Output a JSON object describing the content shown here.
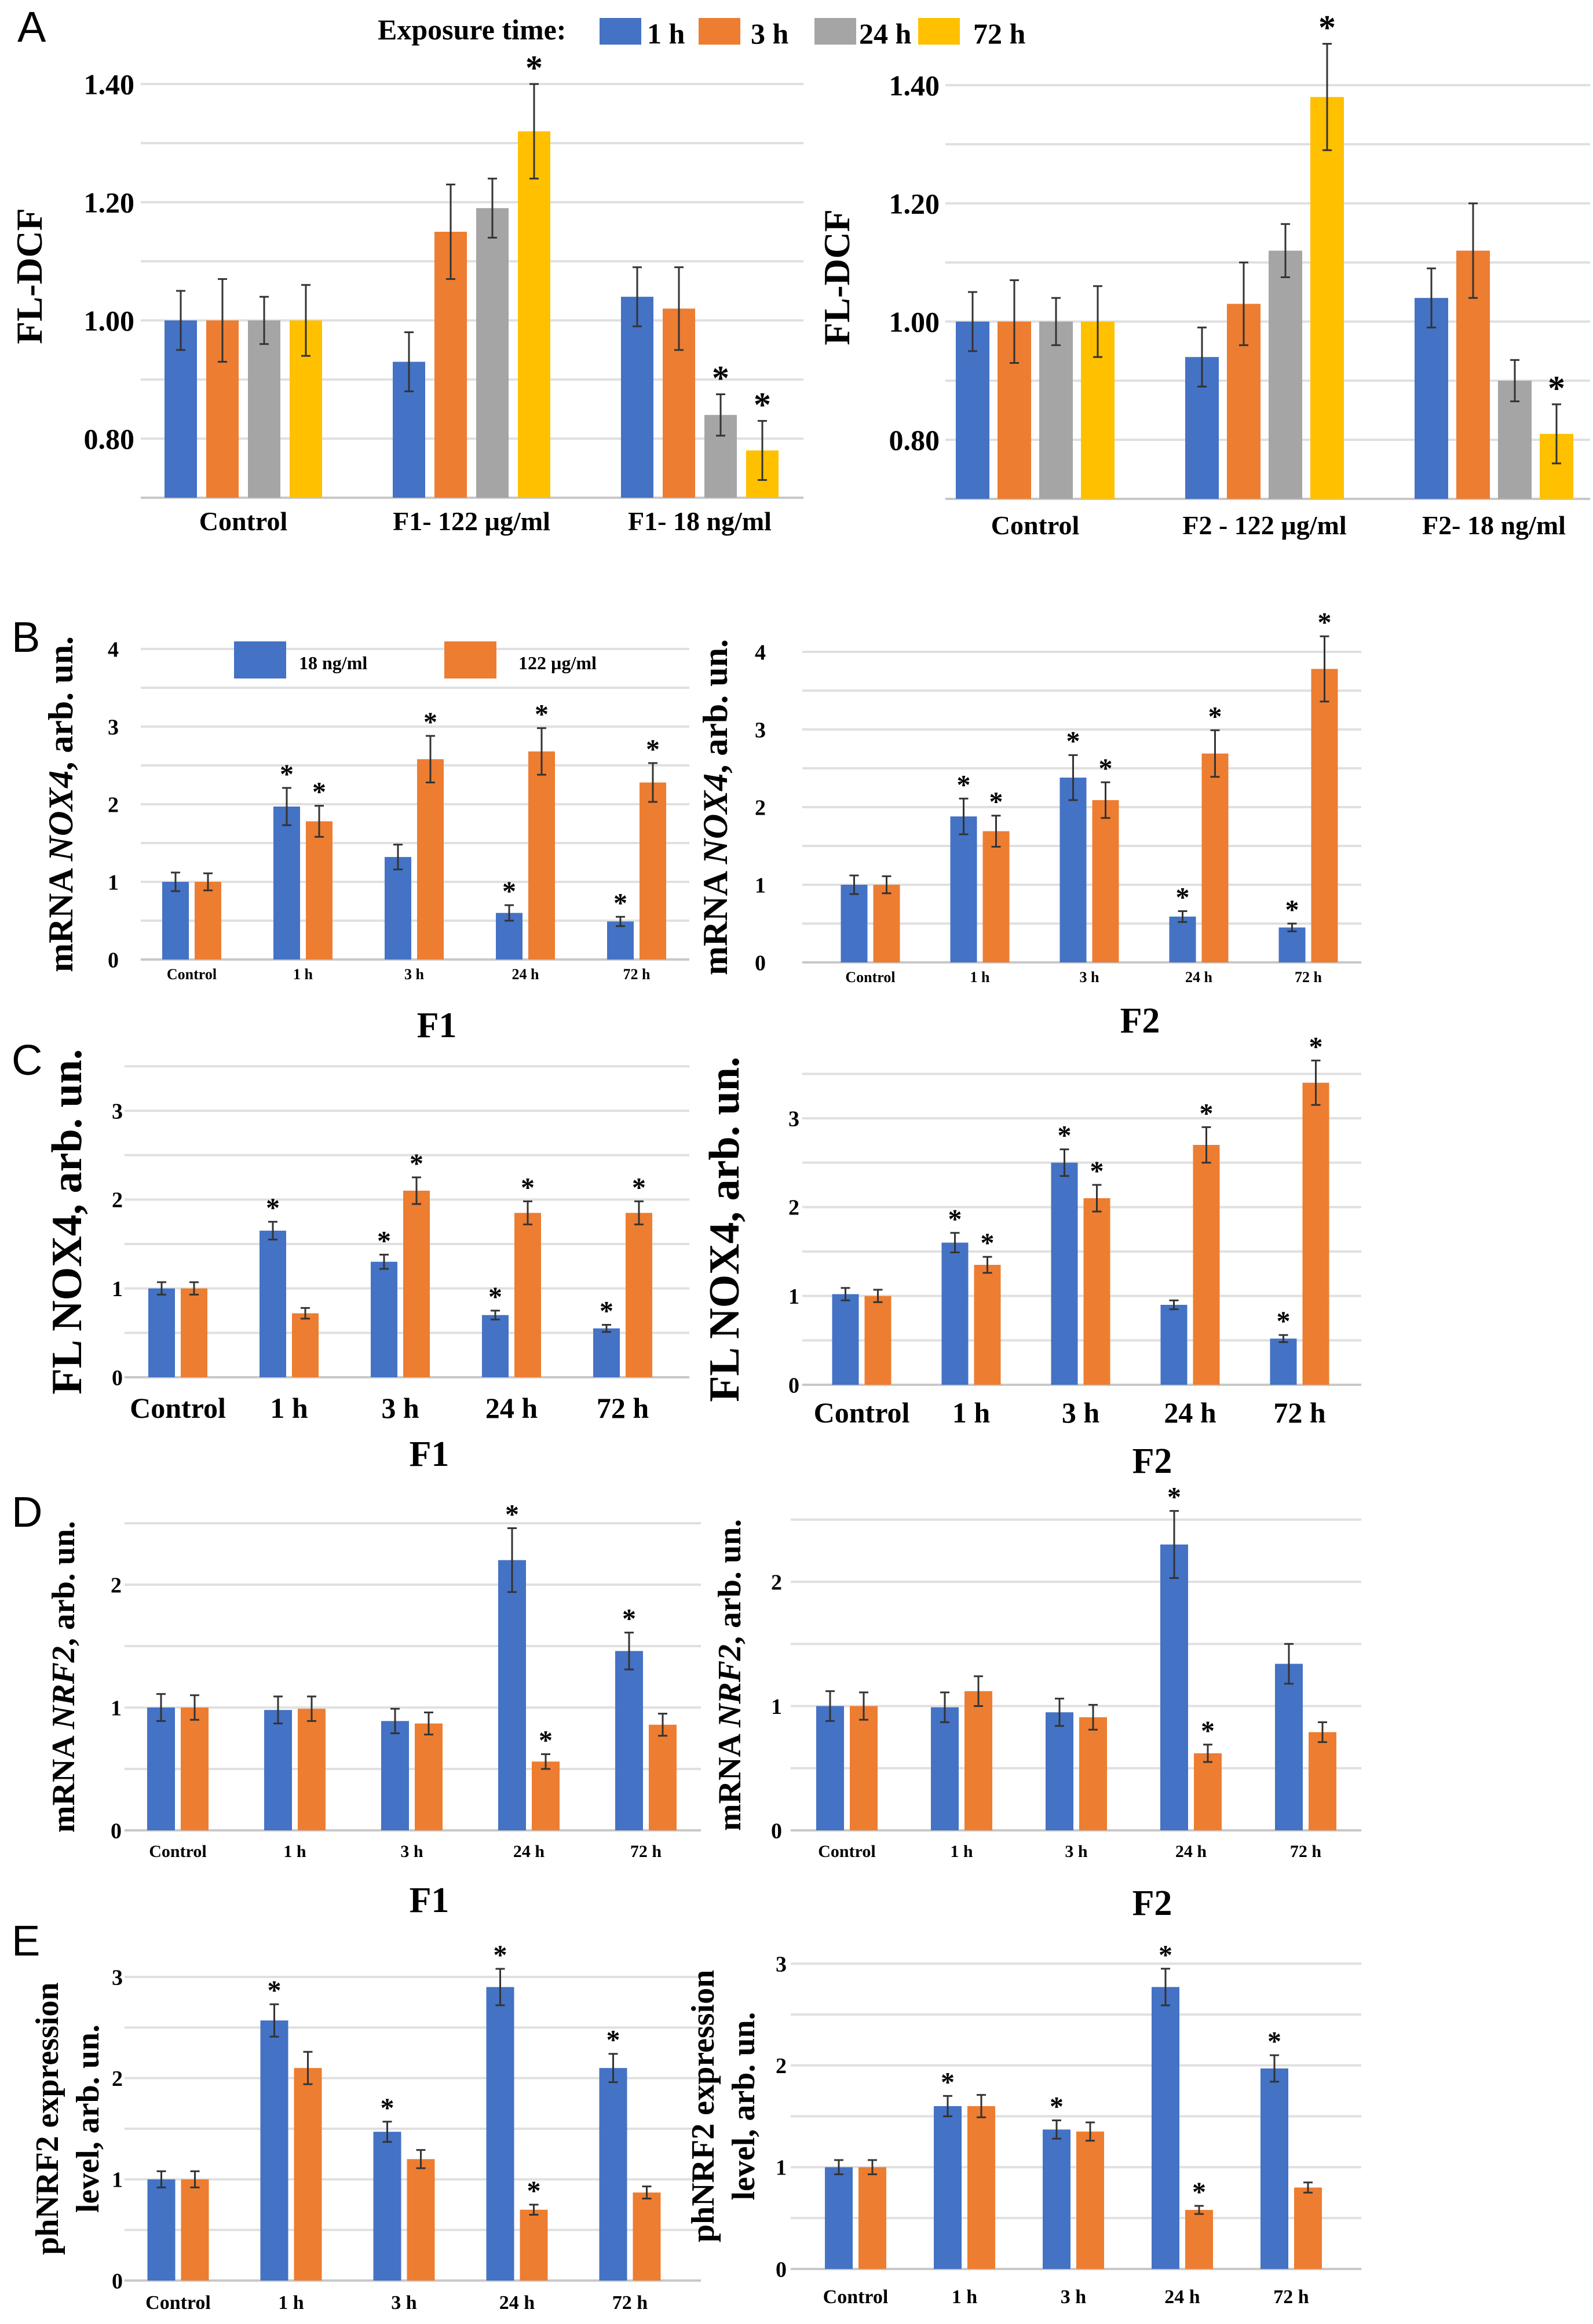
{
  "panel_letters": [
    "A",
    "B",
    "C",
    "D",
    "E"
  ],
  "legend_exposure": {
    "title": "Exposure time:",
    "items": [
      {
        "label": "1 h",
        "color": "#4472C4"
      },
      {
        "label": "3 h",
        "color": "#ED7D31"
      },
      {
        "label": "24 h",
        "color": "#A5A5A5"
      },
      {
        "label": "72 h",
        "color": "#FFC000"
      }
    ]
  },
  "legend_concentration": {
    "items": [
      {
        "label": "18 ng/ml",
        "color": "#4472C4"
      },
      {
        "label": "122 µg/ml",
        "color": "#ED7D31"
      }
    ]
  },
  "chart_data": [
    {
      "panel": "A",
      "type": "bar",
      "grid": true,
      "ylabel": [
        [
          {
            "text": "FL-DCF",
            "italic": false
          }
        ]
      ],
      "ylim": [
        0.7,
        1.45
      ],
      "yticks": [
        0.8,
        1.0,
        1.2,
        1.4
      ],
      "ytick_labels": [
        "0.80",
        "1.00",
        "1.20",
        "1.40"
      ],
      "categories": [
        "Control",
        "F1- 122 µg/ml",
        "F1- 18 ng/ml"
      ],
      "legend": "top",
      "series": [
        {
          "name": "1 h",
          "color": "#4472C4",
          "values": [
            1.0,
            0.93,
            1.04
          ],
          "errors": [
            0.05,
            0.05,
            0.05
          ],
          "significant": [
            false,
            false,
            false
          ]
        },
        {
          "name": "3 h",
          "color": "#ED7D31",
          "values": [
            1.0,
            1.15,
            1.02
          ],
          "errors": [
            0.07,
            0.08,
            0.07
          ],
          "significant": [
            false,
            false,
            false
          ]
        },
        {
          "name": "24 h",
          "color": "#A5A5A5",
          "values": [
            1.0,
            1.19,
            0.84
          ],
          "errors": [
            0.04,
            0.05,
            0.035
          ],
          "significant": [
            false,
            false,
            true
          ]
        },
        {
          "name": "72 h",
          "color": "#FFC000",
          "values": [
            1.0,
            1.32,
            0.78
          ],
          "errors": [
            0.06,
            0.08,
            0.05
          ],
          "significant": [
            false,
            true,
            true
          ]
        }
      ]
    },
    {
      "panel": "A",
      "type": "bar",
      "grid": true,
      "ylabel": [
        [
          {
            "text": "FL-DCF",
            "italic": false
          }
        ]
      ],
      "ylim": [
        0.7,
        1.45
      ],
      "yticks": [
        0.8,
        1.0,
        1.2,
        1.4
      ],
      "ytick_labels": [
        "0.80",
        "1.00",
        "1.20",
        "1.40"
      ],
      "categories": [
        "Control",
        "F2 - 122 µg/ml",
        "F2- 18 ng/ml"
      ],
      "series": [
        {
          "name": "1 h",
          "color": "#4472C4",
          "values": [
            1.0,
            0.94,
            1.04
          ],
          "errors": [
            0.05,
            0.05,
            0.05
          ],
          "significant": [
            false,
            false,
            false
          ]
        },
        {
          "name": "3 h",
          "color": "#ED7D31",
          "values": [
            1.0,
            1.03,
            1.12
          ],
          "errors": [
            0.07,
            0.07,
            0.08
          ],
          "significant": [
            false,
            false,
            false
          ]
        },
        {
          "name": "24 h",
          "color": "#A5A5A5",
          "values": [
            1.0,
            1.12,
            0.9
          ],
          "errors": [
            0.04,
            0.045,
            0.035
          ],
          "significant": [
            false,
            false,
            false
          ]
        },
        {
          "name": "72 h",
          "color": "#FFC000",
          "values": [
            1.0,
            1.38,
            0.81
          ],
          "errors": [
            0.06,
            0.09,
            0.05
          ],
          "significant": [
            false,
            true,
            true
          ]
        }
      ]
    },
    {
      "panel": "B",
      "type": "bar",
      "grid": true,
      "group_label": "F1",
      "ylabel": [
        [
          {
            "text": "mRNA ",
            "italic": false
          },
          {
            "text": "NOX4",
            "italic": true
          },
          {
            "text": ", arb. un.",
            "italic": false
          }
        ]
      ],
      "ylim": [
        0,
        4
      ],
      "yticks": [
        0,
        1,
        2,
        3,
        4
      ],
      "ytick_labels": [
        "0",
        "1",
        "2",
        "3",
        "4"
      ],
      "categories": [
        "Control",
        "1 h",
        "3 h",
        "24 h",
        "72 h"
      ],
      "legend": "top-left",
      "series": [
        {
          "name": "18 ng/ml",
          "color": "#4472C4",
          "values": [
            1.0,
            1.97,
            1.32,
            0.6,
            0.49
          ],
          "errors": [
            0.12,
            0.24,
            0.16,
            0.1,
            0.06
          ],
          "significant": [
            false,
            true,
            false,
            true,
            true
          ]
        },
        {
          "name": "122 µg/ml",
          "color": "#ED7D31",
          "values": [
            1.0,
            1.78,
            2.58,
            2.68,
            2.28
          ],
          "errors": [
            0.11,
            0.2,
            0.3,
            0.3,
            0.25
          ],
          "significant": [
            false,
            true,
            true,
            true,
            true
          ]
        }
      ]
    },
    {
      "panel": "B",
      "type": "bar",
      "grid": true,
      "group_label": "F2",
      "ylabel": [
        [
          {
            "text": "mRNA ",
            "italic": false
          },
          {
            "text": "NOX4",
            "italic": true
          },
          {
            "text": ", arb. un.",
            "italic": false
          }
        ]
      ],
      "ylim": [
        0,
        4
      ],
      "yticks": [
        0,
        1,
        2,
        3,
        4
      ],
      "ytick_labels": [
        "0",
        "1",
        "2",
        "3",
        "4"
      ],
      "categories": [
        "Control",
        "1 h",
        "3 h",
        "24 h",
        "72 h"
      ],
      "series": [
        {
          "name": "18 ng/ml",
          "color": "#4472C4",
          "values": [
            1.0,
            1.88,
            2.38,
            0.59,
            0.45
          ],
          "errors": [
            0.12,
            0.23,
            0.29,
            0.07,
            0.05
          ],
          "significant": [
            false,
            true,
            true,
            true,
            true
          ]
        },
        {
          "name": "122 µg/ml",
          "color": "#ED7D31",
          "values": [
            1.0,
            1.69,
            2.09,
            2.69,
            3.78
          ],
          "errors": [
            0.11,
            0.2,
            0.23,
            0.3,
            0.42
          ],
          "significant": [
            false,
            true,
            true,
            true,
            true
          ]
        }
      ]
    },
    {
      "panel": "C",
      "type": "bar",
      "grid": true,
      "group_label": "F1",
      "ylabel": [
        [
          {
            "text": "FL NOX4, arb. un.",
            "italic": false
          }
        ]
      ],
      "ylim": [
        0,
        3.5
      ],
      "yticks": [
        0,
        1,
        2,
        3
      ],
      "ytick_labels": [
        "0",
        "1",
        "2",
        "3"
      ],
      "categories": [
        "Control",
        "1 h",
        "3 h",
        "24 h",
        "72 h"
      ],
      "series": [
        {
          "color": "#4472C4",
          "values": [
            1.0,
            1.65,
            1.3,
            0.7,
            0.55
          ],
          "errors": [
            0.07,
            0.1,
            0.08,
            0.05,
            0.04
          ],
          "significant": [
            false,
            true,
            true,
            true,
            true
          ]
        },
        {
          "color": "#ED7D31",
          "values": [
            1.0,
            0.72,
            2.1,
            1.85,
            1.85
          ],
          "errors": [
            0.07,
            0.06,
            0.15,
            0.13,
            0.13
          ],
          "significant": [
            false,
            false,
            true,
            true,
            true
          ]
        }
      ]
    },
    {
      "panel": "C",
      "type": "bar",
      "grid": true,
      "group_label": "F2",
      "ylabel": [
        [
          {
            "text": "FL NOX4, arb. un.",
            "italic": false
          }
        ]
      ],
      "ylim": [
        0,
        3.5
      ],
      "yticks": [
        0,
        1,
        2,
        3
      ],
      "ytick_labels": [
        "0",
        "1",
        "2",
        "3"
      ],
      "categories": [
        "Control",
        "1 h",
        "3 h",
        "24 h",
        "72 h"
      ],
      "series": [
        {
          "color": "#4472C4",
          "values": [
            1.02,
            1.6,
            2.5,
            0.9,
            0.52
          ],
          "errors": [
            0.07,
            0.11,
            0.15,
            0.05,
            0.04
          ],
          "significant": [
            false,
            true,
            true,
            false,
            true
          ]
        },
        {
          "color": "#ED7D31",
          "values": [
            1.0,
            1.35,
            2.1,
            2.7,
            3.4
          ],
          "errors": [
            0.07,
            0.09,
            0.15,
            0.2,
            0.25
          ],
          "significant": [
            false,
            true,
            true,
            true,
            true
          ]
        }
      ]
    },
    {
      "panel": "D",
      "type": "bar",
      "grid": true,
      "group_label": "F1",
      "ylabel": [
        [
          {
            "text": "mRNA ",
            "italic": false
          },
          {
            "text": "NRF2",
            "italic": true
          },
          {
            "text": ", arb. un.",
            "italic": false
          }
        ]
      ],
      "ylim": [
        0,
        2.5
      ],
      "yticks": [
        0,
        1,
        2
      ],
      "ytick_labels": [
        "0",
        "1",
        "2"
      ],
      "categories": [
        "Control",
        "1 h",
        "3 h",
        "24 h",
        "72 h"
      ],
      "series": [
        {
          "color": "#4472C4",
          "values": [
            1.0,
            0.98,
            0.89,
            2.2,
            1.46
          ],
          "errors": [
            0.11,
            0.11,
            0.1,
            0.26,
            0.15
          ],
          "significant": [
            false,
            false,
            false,
            true,
            true
          ]
        },
        {
          "color": "#ED7D31",
          "values": [
            1.0,
            0.99,
            0.87,
            0.56,
            0.86
          ],
          "errors": [
            0.1,
            0.1,
            0.09,
            0.06,
            0.09
          ],
          "significant": [
            false,
            false,
            false,
            true,
            false
          ]
        }
      ]
    },
    {
      "panel": "D",
      "type": "bar",
      "grid": true,
      "group_label": "F2",
      "ylabel": [
        [
          {
            "text": "mRNA ",
            "italic": false
          },
          {
            "text": "NRF2",
            "italic": true
          },
          {
            "text": ", arb. un.",
            "italic": false
          }
        ]
      ],
      "ylim": [
        0,
        2.5
      ],
      "yticks": [
        0,
        1,
        2
      ],
      "ytick_labels": [
        "0",
        "1",
        "2"
      ],
      "categories": [
        "Control",
        "1 h",
        "3 h",
        "24 h",
        "72 h"
      ],
      "series": [
        {
          "color": "#4472C4",
          "values": [
            1.0,
            0.99,
            0.95,
            2.3,
            1.34
          ],
          "errors": [
            0.12,
            0.12,
            0.11,
            0.27,
            0.16
          ],
          "significant": [
            false,
            false,
            false,
            true,
            false
          ]
        },
        {
          "color": "#ED7D31",
          "values": [
            1.0,
            1.12,
            0.91,
            0.62,
            0.79
          ],
          "errors": [
            0.11,
            0.12,
            0.1,
            0.07,
            0.08
          ],
          "significant": [
            false,
            false,
            false,
            true,
            false
          ]
        }
      ]
    },
    {
      "panel": "E",
      "type": "bar",
      "grid": true,
      "ylabel": [
        [
          {
            "text": "phNRF2  expression",
            "italic": false
          }
        ],
        [
          {
            "text": "level, arb. un.",
            "italic": false
          }
        ]
      ],
      "ylim": [
        0,
        3.2
      ],
      "yticks": [
        0,
        1,
        2,
        3
      ],
      "ytick_labels": [
        "0",
        "1",
        "2",
        "3"
      ],
      "categories": [
        "Control",
        "1 h",
        "3 h",
        "24 h",
        "72 h"
      ],
      "series": [
        {
          "color": "#4472C4",
          "values": [
            1.0,
            2.57,
            1.47,
            2.9,
            2.1
          ],
          "errors": [
            0.08,
            0.16,
            0.1,
            0.18,
            0.14
          ],
          "significant": [
            false,
            true,
            true,
            true,
            true
          ]
        },
        {
          "color": "#ED7D31",
          "values": [
            1.0,
            2.1,
            1.2,
            0.7,
            0.87
          ],
          "errors": [
            0.08,
            0.16,
            0.09,
            0.05,
            0.06
          ],
          "significant": [
            false,
            false,
            false,
            true,
            false
          ]
        }
      ]
    },
    {
      "panel": "E",
      "type": "bar",
      "grid": true,
      "ylabel": [
        [
          {
            "text": "phNRF2  expression",
            "italic": false
          }
        ],
        [
          {
            "text": "level, arb. un.",
            "italic": false
          }
        ]
      ],
      "ylim": [
        0,
        3.2
      ],
      "yticks": [
        0,
        1,
        2,
        3
      ],
      "ytick_labels": [
        "0",
        "1",
        "2",
        "3"
      ],
      "categories": [
        "Control",
        "1 h",
        "3 h",
        "24 h",
        "72 h"
      ],
      "series": [
        {
          "color": "#4472C4",
          "values": [
            1.0,
            1.6,
            1.37,
            2.77,
            1.97
          ],
          "errors": [
            0.07,
            0.1,
            0.09,
            0.18,
            0.13
          ],
          "significant": [
            false,
            true,
            true,
            true,
            true
          ]
        },
        {
          "color": "#ED7D31",
          "values": [
            1.0,
            1.6,
            1.35,
            0.58,
            0.8
          ],
          "errors": [
            0.07,
            0.11,
            0.09,
            0.04,
            0.05
          ],
          "significant": [
            false,
            false,
            false,
            true,
            false
          ]
        }
      ]
    }
  ]
}
